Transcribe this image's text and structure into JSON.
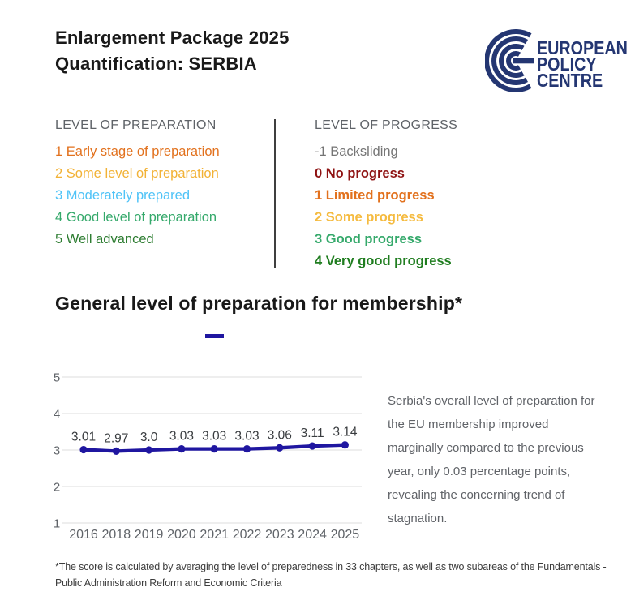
{
  "header": {
    "title_line1": "Enlargement Package 2025",
    "title_line2": "Quantification: SERBIA",
    "logo": {
      "name": "European Policy Centre",
      "lines": [
        "EUROPEAN",
        "POLICY",
        "CENTRE"
      ],
      "color": "#243672"
    }
  },
  "legend_preparation": {
    "title": "LEVEL OF PREPARATION",
    "items": [
      {
        "label": "1 Early stage of preparation",
        "color": "#e2711d"
      },
      {
        "label": "2 Some level of preparation",
        "color": "#f2b236"
      },
      {
        "label": "3 Moderately prepared",
        "color": "#4fc3f7"
      },
      {
        "label": "4 Good level of preparation",
        "color": "#35a96b"
      },
      {
        "label": "5 Well advanced",
        "color": "#2e7d32"
      }
    ]
  },
  "legend_progress": {
    "title": "LEVEL OF PROGRESS",
    "items": [
      {
        "label": "-1 Backsliding",
        "color": "#757575"
      },
      {
        "label": "0 No progress",
        "color": "#8e1212"
      },
      {
        "label": "1 Limited progress",
        "color": "#e2711d"
      },
      {
        "label": "2 Some progress",
        "color": "#f5bb40"
      },
      {
        "label": "3 Good progress",
        "color": "#35a96b"
      },
      {
        "label": "4 Very good progress",
        "color": "#1f7d1f"
      }
    ]
  },
  "section": {
    "title": "General level of preparation for membership*"
  },
  "chart_data": {
    "type": "line",
    "title": "General level of preparation for membership*",
    "categories": [
      "2016",
      "2018",
      "2019",
      "2020",
      "2021",
      "2022",
      "2023",
      "2024",
      "2025"
    ],
    "values": [
      3.01,
      2.97,
      3.0,
      3.03,
      3.03,
      3.03,
      3.06,
      3.11,
      3.14
    ],
    "labels": [
      "3.01",
      "2.97",
      "3.0",
      "3.03",
      "3.03",
      "3.03",
      "3.06",
      "3.11",
      "3.14"
    ],
    "xlabel": "",
    "ylabel": "",
    "ylim": [
      1,
      5
    ],
    "yticks": [
      1,
      2,
      3,
      4,
      5
    ],
    "grid": true,
    "line_color": "#1f16a0",
    "gridline_color": "#e4e4e4",
    "axis_label_color": "#5f6368",
    "data_label_color": "#393c3f",
    "legend_position": "top"
  },
  "description": "Serbia's overall level of preparation for the EU membership improved marginally compared to the previous year, only 0.03 percentage points, revealing the concerning trend of stagnation.",
  "footnote": "*The score is calculated by averaging the level of preparedness in 33 chapters, as well as two subareas of the Fundamentals - Public Administration Reform and Economic Criteria"
}
